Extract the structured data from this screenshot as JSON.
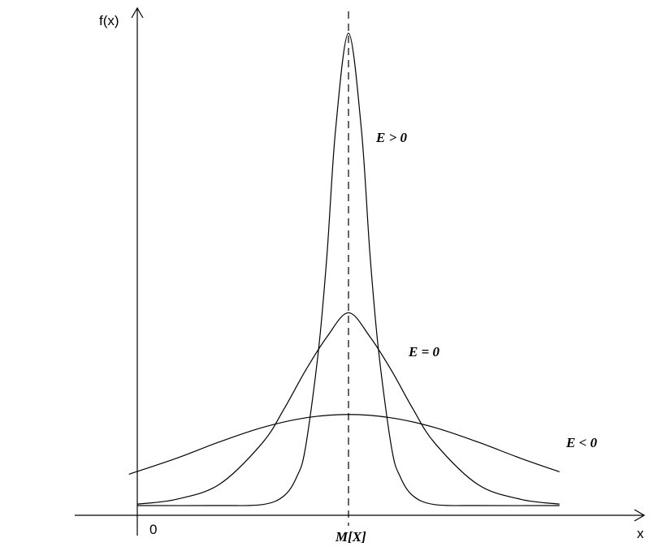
{
  "chart_data": {
    "type": "line",
    "ylabel": "f(x)",
    "xlabel": "x",
    "origin_label": "0",
    "mean_label": "M[X]",
    "xlim": [
      -6,
      6.8
    ],
    "ylim": [
      -0.02,
      1.0
    ],
    "grid": false,
    "series": [
      {
        "name": "E > 0",
        "x": [
          -4.9,
          -3.0,
          -2.0,
          -1.5,
          -1.2,
          -1.0,
          -0.7,
          -0.5,
          -0.3,
          0.0,
          0.3,
          0.5,
          0.7,
          1.0,
          1.2,
          1.5,
          2.0,
          3.0,
          4.9
        ],
        "y": [
          0.0,
          0.0,
          0.002,
          0.02,
          0.06,
          0.12,
          0.32,
          0.52,
          0.78,
          0.98,
          0.78,
          0.52,
          0.32,
          0.12,
          0.06,
          0.02,
          0.002,
          0.0,
          0.0
        ]
      },
      {
        "name": "E = 0",
        "x": [
          -4.9,
          -4.0,
          -3.0,
          -2.0,
          -1.5,
          -1.0,
          -0.5,
          0.0,
          0.5,
          1.0,
          1.5,
          2.0,
          3.0,
          4.0,
          4.9
        ],
        "y": [
          0.003,
          0.013,
          0.044,
          0.13,
          0.2,
          0.28,
          0.35,
          0.4,
          0.35,
          0.28,
          0.2,
          0.13,
          0.044,
          0.013,
          0.003
        ]
      },
      {
        "name": "E < 0",
        "x": [
          -5.1,
          -4.0,
          -3.0,
          -2.0,
          -1.0,
          0.0,
          1.0,
          2.0,
          3.0,
          4.0,
          4.9
        ],
        "y": [
          0.065,
          0.098,
          0.132,
          0.162,
          0.182,
          0.189,
          0.182,
          0.162,
          0.132,
          0.098,
          0.07
        ]
      }
    ]
  }
}
